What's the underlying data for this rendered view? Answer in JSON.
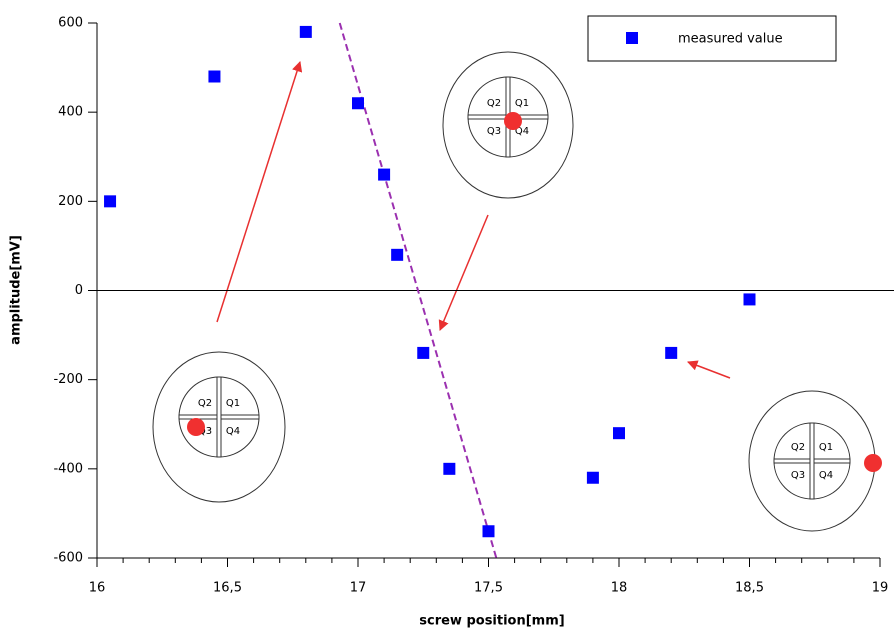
{
  "chart_data": {
    "type": "scatter",
    "x_label": "screw position[mm]",
    "y_label": "amplitude[mV]",
    "series": [
      {
        "name": "measured value",
        "color": "#0000ff",
        "x": [
          16.05,
          16.45,
          16.8,
          17.0,
          17.1,
          17.15,
          17.25,
          17.35,
          17.5,
          17.9,
          18.0,
          18.2,
          18.5
        ],
        "values": [
          200,
          480,
          580,
          420,
          260,
          80,
          -140,
          -400,
          -540,
          -420,
          -320,
          -140,
          -20
        ]
      }
    ],
    "fit_line": {
      "x": [
        16.93,
        17.53
      ],
      "values": [
        600,
        -600
      ],
      "color": "#9b30b0"
    },
    "xlim": [
      16,
      19
    ],
    "xticks": [
      16,
      {
        "value": 16.5,
        "label": "16,5"
      },
      17,
      {
        "value": 17.5,
        "label": "17,5"
      },
      18,
      {
        "value": 18.5,
        "label": "18,5"
      },
      19
    ],
    "ylim": [
      -600,
      600
    ],
    "yticks": [
      -600,
      -400,
      -200,
      0,
      200,
      400,
      600
    ],
    "legend": "upper right",
    "diagrams": [
      {
        "quadrants": [
          "Q2",
          "Q1",
          "Q3",
          "Q4"
        ]
      },
      {
        "quadrants": [
          "Q2",
          "Q1",
          "Q3",
          "Q4"
        ]
      },
      {
        "quadrants": [
          "Q2",
          "Q1",
          "Q3",
          "Q4"
        ]
      }
    ]
  }
}
